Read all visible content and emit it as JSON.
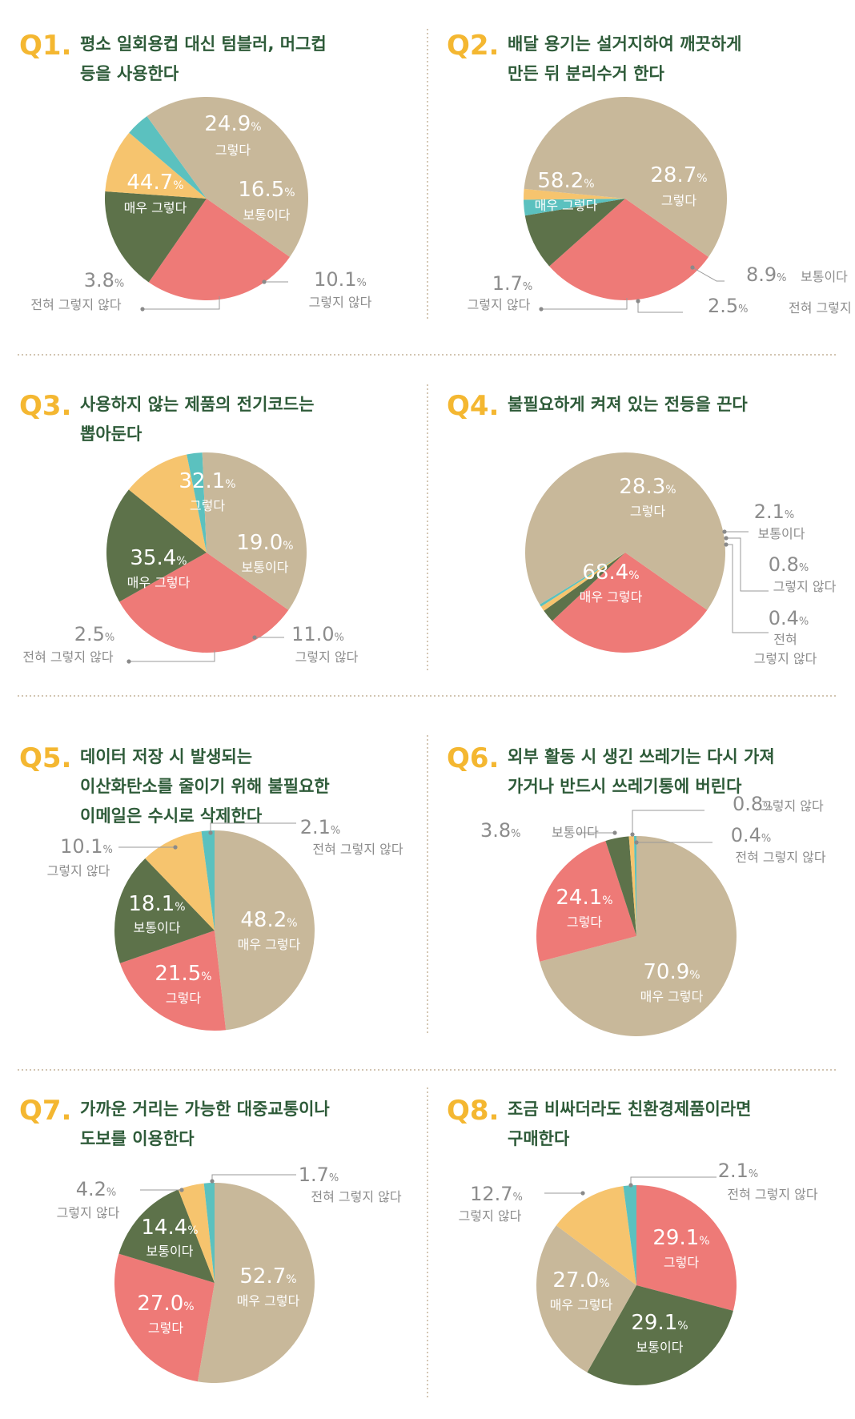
{
  "colors": {
    "very_agree": "#c8b89a",
    "agree": "#ee7a77",
    "neutral": "#5d724a",
    "disagree": "#f6c46e",
    "strongly_disagree": "#5bc1bf",
    "question_number": "#f4b731",
    "question_text": "#2e5b39",
    "outside_label": "#8c8c8c",
    "divider": "#b7a283"
  },
  "percent_sign": "%",
  "chart_data": [
    {
      "type": "pie",
      "number": "Q1.",
      "title_lines": [
        "평소 일회용컵 대신 텀블러, 머그컵",
        "등을 사용한다"
      ],
      "slices": [
        {
          "label": "그렇다",
          "value": "24.9",
          "key": "agree"
        },
        {
          "label": "보통이다",
          "value": "16.5",
          "key": "neutral"
        },
        {
          "label": "그렇지 않다",
          "value": "10.1",
          "key": "disagree"
        },
        {
          "label": "전혀 그렇지 않다",
          "value": "3.8",
          "key": "strongly_disagree"
        },
        {
          "label": "매우 그렇다",
          "value": "44.7",
          "key": "very_agree"
        }
      ]
    },
    {
      "type": "pie",
      "number": "Q2.",
      "title_lines": [
        "배달 용기는 설거지하여 깨끗하게",
        "만든 뒤 분리수거 한다"
      ],
      "slices": [
        {
          "label": "그렇다",
          "value": "28.7",
          "key": "agree"
        },
        {
          "label": "보통이다",
          "value": "8.9",
          "key": "neutral"
        },
        {
          "label": "전혀 그렇지 않다",
          "value": "2.5",
          "key": "strongly_disagree"
        },
        {
          "label": "그렇지 않다",
          "value": "1.7",
          "key": "disagree"
        },
        {
          "label": "매우 그렇다",
          "value": "58.2",
          "key": "very_agree"
        }
      ]
    },
    {
      "type": "pie",
      "number": "Q3.",
      "title_lines": [
        "사용하지 않는 제품의 전기코드는",
        "뽑아둔다"
      ],
      "slices": [
        {
          "label": "그렇다",
          "value": "32.1",
          "key": "agree"
        },
        {
          "label": "보통이다",
          "value": "19.0",
          "key": "neutral"
        },
        {
          "label": "그렇지 않다",
          "value": "11.0",
          "key": "disagree"
        },
        {
          "label": "전혀 그렇지 않다",
          "value": "2.5",
          "key": "strongly_disagree"
        },
        {
          "label": "매우 그렇다",
          "value": "35.4",
          "key": "very_agree"
        }
      ]
    },
    {
      "type": "pie",
      "number": "Q4.",
      "title_lines": [
        "불필요하게 켜져 있는 전등을 끈다"
      ],
      "slices": [
        {
          "label": "그렇다",
          "value": "28.3",
          "key": "agree"
        },
        {
          "label": "보통이다",
          "value": "2.1",
          "key": "neutral"
        },
        {
          "label": "그렇지 않다",
          "value": "0.8",
          "key": "disagree"
        },
        {
          "label": "전혀 그렇지 않다",
          "value": "0.4",
          "key": "strongly_disagree"
        },
        {
          "label": "매우 그렇다",
          "value": "68.4",
          "key": "very_agree"
        }
      ]
    },
    {
      "type": "pie",
      "number": "Q5.",
      "title_lines": [
        "데이터 저장 시 발생되는",
        "이산화탄소를 줄이기 위해 불필요한",
        "이메일은 수시로 삭제한다"
      ],
      "slices": [
        {
          "label": "매우 그렇다",
          "value": "48.2",
          "key": "very_agree"
        },
        {
          "label": "그렇다",
          "value": "21.5",
          "key": "agree"
        },
        {
          "label": "보통이다",
          "value": "18.1",
          "key": "neutral"
        },
        {
          "label": "그렇지 않다",
          "value": "10.1",
          "key": "disagree"
        },
        {
          "label": "전혀 그렇지 않다",
          "value": "2.1",
          "key": "strongly_disagree"
        }
      ]
    },
    {
      "type": "pie",
      "number": "Q6.",
      "title_lines": [
        "외부 활동 시 생긴 쓰레기는 다시 가져",
        "가거나 반드시 쓰레기통에 버린다"
      ],
      "slices": [
        {
          "label": "매우 그렇다",
          "value": "70.9",
          "key": "very_agree"
        },
        {
          "label": "그렇다",
          "value": "24.1",
          "key": "agree"
        },
        {
          "label": "보통이다",
          "value": "3.8",
          "key": "neutral"
        },
        {
          "label": "그렇지 않다",
          "value": "0.8",
          "key": "disagree"
        },
        {
          "label": "전혀 그렇지 않다",
          "value": "0.4",
          "key": "strongly_disagree"
        }
      ]
    },
    {
      "type": "pie",
      "number": "Q7.",
      "title_lines": [
        "가까운 거리는 가능한 대중교통이나",
        "도보를 이용한다"
      ],
      "slices": [
        {
          "label": "매우 그렇다",
          "value": "52.7",
          "key": "very_agree"
        },
        {
          "label": "그렇다",
          "value": "27.0",
          "key": "agree"
        },
        {
          "label": "보통이다",
          "value": "14.4",
          "key": "neutral"
        },
        {
          "label": "그렇지 않다",
          "value": "4.2",
          "key": "disagree"
        },
        {
          "label": "전혀 그렇지 않다",
          "value": "1.7",
          "key": "strongly_disagree"
        }
      ]
    },
    {
      "type": "pie",
      "number": "Q8.",
      "title_lines": [
        "조금 비싸더라도 친환경제품이라면",
        "구매한다"
      ],
      "slices": [
        {
          "label": "그렇다",
          "value": "29.1",
          "key": "agree"
        },
        {
          "label": "보통이다",
          "value": "29.1",
          "key": "neutral"
        },
        {
          "label": "매우 그렇다",
          "value": "27.0",
          "key": "very_agree"
        },
        {
          "label": "그렇지 않다",
          "value": "12.7",
          "key": "disagree"
        },
        {
          "label": "전혀 그렇지 않다",
          "value": "2.1",
          "key": "strongly_disagree"
        }
      ]
    }
  ]
}
